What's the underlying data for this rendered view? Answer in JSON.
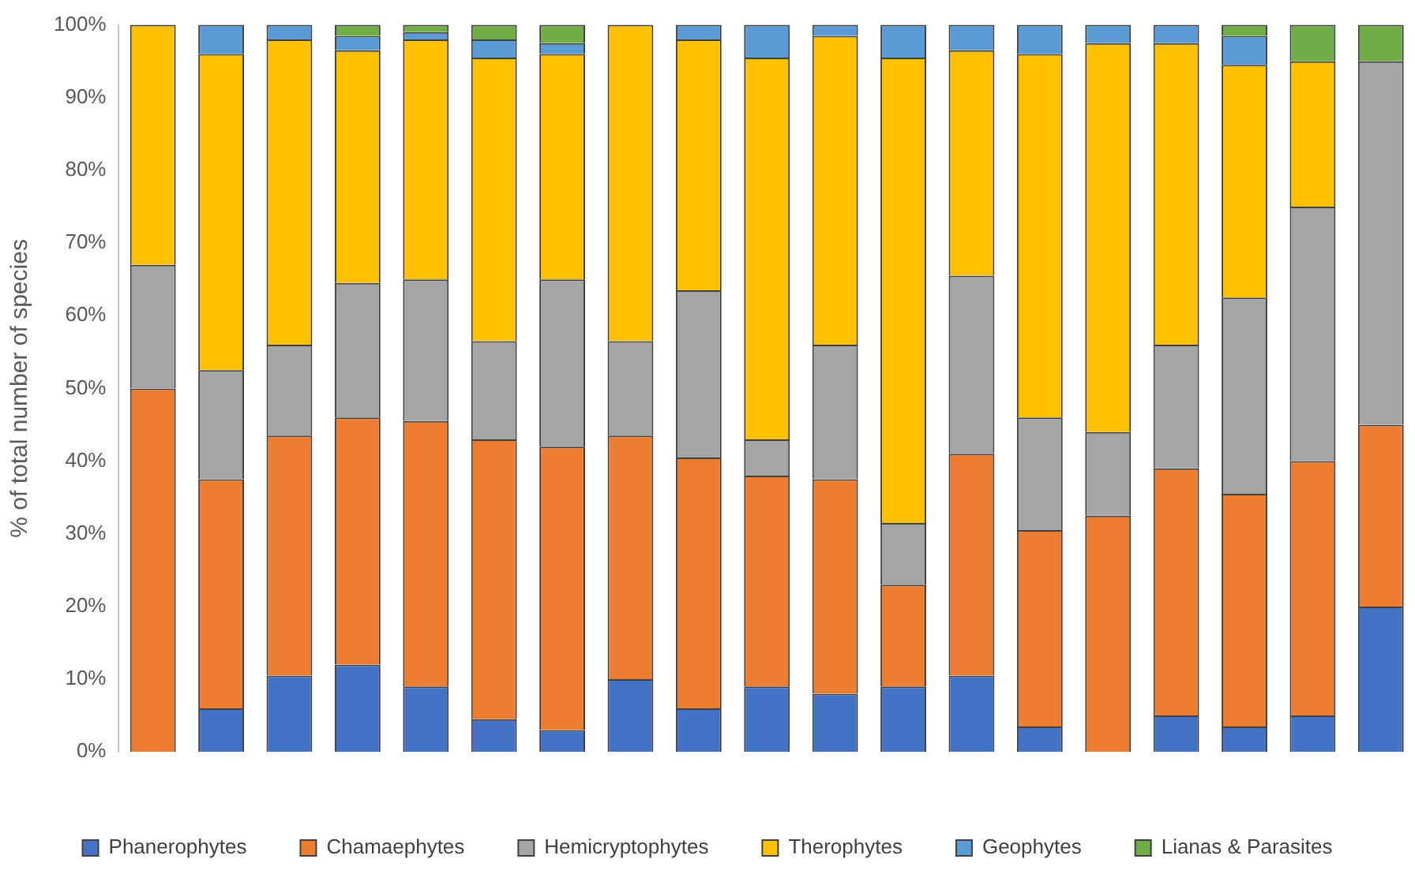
{
  "chart_data": {
    "type": "bar",
    "stacked": true,
    "ylabel": "% of total number of species",
    "categories": [
      null,
      null,
      null,
      null,
      null,
      null,
      null,
      null,
      null,
      null,
      null,
      null,
      null,
      null,
      null,
      null,
      null,
      null,
      null
    ],
    "series": [
      {
        "name": "Phanerophytes",
        "color": "#4472c4",
        "values": [
          0,
          6,
          10.5,
          12,
          9,
          4.5,
          3,
          10,
          6,
          9,
          8,
          9,
          10.5,
          3.5,
          0,
          5,
          3.5,
          5,
          20
        ]
      },
      {
        "name": "Chamaephytes",
        "color": "#ed7d31",
        "values": [
          50,
          31.5,
          33,
          34,
          36.5,
          38.5,
          39,
          33.5,
          34.5,
          29,
          29.5,
          14,
          30.5,
          27,
          32.5,
          34,
          32,
          35,
          25
        ]
      },
      {
        "name": "Hemicryptophytes",
        "color": "#a5a5a5",
        "values": [
          17,
          15,
          12.5,
          18.5,
          19.5,
          13.5,
          23,
          13,
          23,
          5,
          18.5,
          8.5,
          24.5,
          15.5,
          11.5,
          17,
          27,
          35,
          50
        ]
      },
      {
        "name": "Therophytes",
        "color": "#ffc000",
        "values": [
          33,
          43.5,
          42,
          32,
          33,
          39,
          31,
          43.5,
          34.5,
          52.5,
          42.5,
          64,
          31,
          50,
          53.5,
          41.5,
          32,
          20,
          0
        ]
      },
      {
        "name": "Geophytes",
        "color": "#5b9bd5",
        "values": [
          0,
          4,
          2,
          2,
          1,
          2.5,
          1.5,
          0,
          2,
          4.5,
          1.5,
          4.5,
          3.5,
          4,
          2.5,
          2.5,
          4,
          0,
          0
        ]
      },
      {
        "name": "Lianas & Parasites",
        "color": "#70ad47",
        "values": [
          0,
          0,
          0,
          1.5,
          1,
          2,
          2.5,
          0,
          0,
          0,
          0,
          0,
          0,
          0,
          0,
          0,
          1.5,
          5,
          5
        ]
      }
    ],
    "ylim": [
      0,
      100
    ],
    "yticks": [
      {
        "value": 0,
        "label": "0%"
      },
      {
        "value": 10,
        "label": "10%"
      },
      {
        "value": 20,
        "label": "20%"
      },
      {
        "value": 30,
        "label": "30%"
      },
      {
        "value": 40,
        "label": "40%"
      },
      {
        "value": 50,
        "label": "50%"
      },
      {
        "value": 60,
        "label": "60%"
      },
      {
        "value": 70,
        "label": "70%"
      },
      {
        "value": 80,
        "label": "80%"
      },
      {
        "value": 90,
        "label": "90%"
      },
      {
        "value": 100,
        "label": "100%"
      }
    ],
    "grid": false,
    "legend": "bottom"
  }
}
